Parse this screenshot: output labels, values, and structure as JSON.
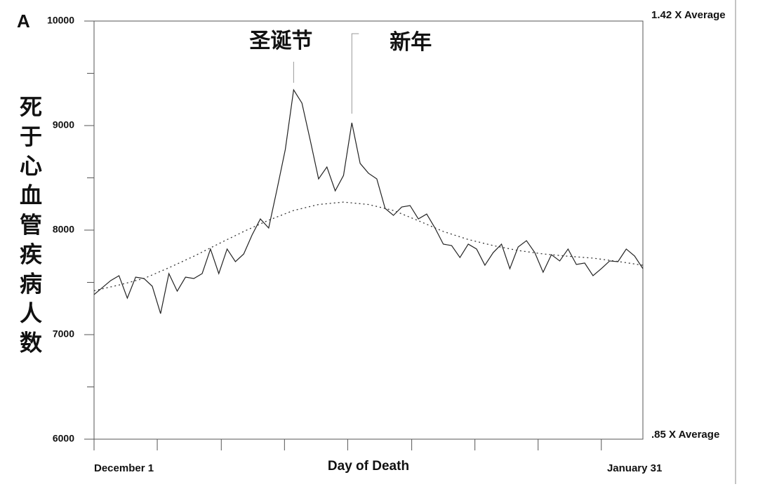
{
  "chart_data": {
    "type": "line",
    "panel": "A",
    "xlabel": "Day of Death",
    "ylabel": "死于心血管疾病人数",
    "x": [
      0,
      1,
      2,
      3,
      4,
      5,
      6,
      7,
      8,
      9,
      10,
      11,
      12,
      13,
      14,
      15,
      16,
      17,
      18,
      19,
      20,
      21,
      22,
      23,
      24,
      25,
      26,
      27,
      28,
      29,
      30,
      31,
      32,
      33,
      34,
      35,
      36,
      37,
      38,
      39,
      40,
      41,
      42,
      43,
      44,
      45,
      46,
      47,
      48,
      49,
      50,
      51,
      52,
      53,
      54,
      55,
      56,
      57,
      58,
      59,
      60,
      61,
      62,
      63,
      64,
      65,
      66
    ],
    "series": [
      {
        "color": "#222222",
        "values": [
          7383,
          7450,
          7517,
          7564,
          7349,
          7550,
          7537,
          7463,
          7201,
          7584,
          7416,
          7550,
          7537,
          7584,
          7819,
          7584,
          7819,
          7698,
          7772,
          7953,
          8107,
          8020,
          8389,
          8772,
          9342,
          9215,
          8859,
          8490,
          8604,
          8376,
          8523,
          9027,
          8638,
          8544,
          8490,
          8208,
          8141,
          8221,
          8235,
          8107,
          8154,
          8020,
          7866,
          7852,
          7738,
          7866,
          7819,
          7664,
          7785,
          7866,
          7631,
          7839,
          7899,
          7785,
          7597,
          7765,
          7705,
          7819,
          7671,
          7685,
          7564,
          7631,
          7705,
          7698,
          7819,
          7752,
          7631
        ]
      },
      {
        "color": "#333333",
        "dashed": true,
        "x": [
          0,
          3,
          6,
          9,
          12,
          15,
          18,
          21,
          24,
          27,
          30,
          33,
          36,
          39,
          42,
          45,
          48,
          51,
          54,
          57,
          60,
          63,
          66
        ],
        "values": [
          7420,
          7475,
          7537,
          7640,
          7750,
          7870,
          7987,
          8095,
          8188,
          8245,
          8268,
          8245,
          8188,
          8090,
          7987,
          7910,
          7852,
          7805,
          7772,
          7750,
          7732,
          7700,
          7664
        ]
      }
    ],
    "xlim": [
      0,
      66
    ],
    "xticks": [
      0,
      7.6,
      15.3,
      22.9,
      30.5,
      38.2,
      45.8,
      53.4,
      61
    ],
    "x_labels": [
      {
        "value": 0,
        "label": "December 1"
      },
      {
        "value": 65,
        "label": "January 31"
      }
    ],
    "ylim": [
      6000,
      10000
    ],
    "yticks": [
      6000,
      7000,
      8000,
      9000,
      10000
    ],
    "yminor": [
      6500,
      7500,
      8500,
      9500
    ],
    "y2lim": [
      0.85,
      1.42
    ],
    "y2ticks": [
      {
        "value": 0.85,
        "label": ".85 X Average"
      },
      {
        "value": 1.42,
        "label": "1.42 X Average"
      }
    ],
    "annotations": [
      {
        "text": "圣诞节",
        "x": 24
      },
      {
        "text": "新年",
        "x": 31
      }
    ]
  }
}
